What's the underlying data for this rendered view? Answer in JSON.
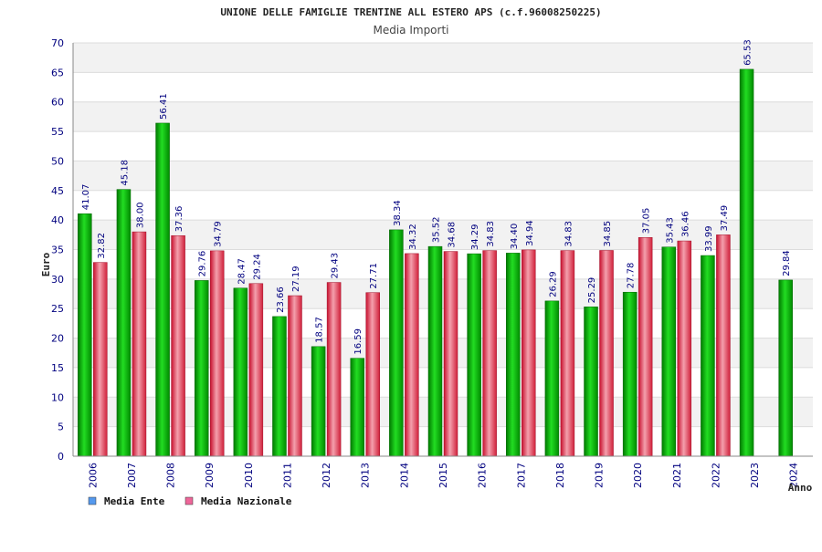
{
  "chart_data": {
    "type": "bar",
    "title": "UNIONE DELLE FAMIGLIE TRENTINE ALL ESTERO APS (c.f.96008250225)",
    "subtitle": "Media Importi",
    "xlabel": "Anno",
    "ylabel": "Euro",
    "ylim": [
      0,
      70
    ],
    "ytick_step": 5,
    "grid": true,
    "legend_position": "bottom-left",
    "categories": [
      "2006",
      "2007",
      "2008",
      "2009",
      "2010",
      "2011",
      "2012",
      "2013",
      "2014",
      "2015",
      "2016",
      "2017",
      "2018",
      "2019",
      "2020",
      "2021",
      "2022",
      "2023",
      "2024"
    ],
    "series": [
      {
        "name": "Media Ente",
        "legend_color": "#5599ee",
        "bar_color": "#00b000",
        "values": [
          41.07,
          45.18,
          56.41,
          29.76,
          28.47,
          23.66,
          18.57,
          16.59,
          38.34,
          35.52,
          34.29,
          34.4,
          26.29,
          25.29,
          27.78,
          35.43,
          33.99,
          65.53,
          29.84
        ],
        "labels": [
          "41.07",
          "45.18",
          "56.41",
          "29.76",
          "28.47",
          "23.66",
          "18.57",
          "16.59",
          "38.34",
          "35.52",
          "34.29",
          "34.40",
          "26.29",
          "25.29",
          "27.78",
          "35.43",
          "33.99",
          "65.53",
          "29.84"
        ]
      },
      {
        "name": "Media Nazionale",
        "legend_color": "#ee6699",
        "bar_color": "#e02040",
        "values": [
          32.82,
          38.0,
          37.36,
          34.79,
          29.24,
          27.19,
          29.43,
          27.71,
          34.32,
          34.68,
          34.83,
          34.94,
          34.83,
          34.85,
          37.05,
          36.46,
          37.49,
          null,
          null
        ],
        "labels": [
          "32.82",
          "38.00",
          "37.36",
          "34.79",
          "29.24",
          "27.19",
          "29.43",
          "27.71",
          "34.32",
          "34.68",
          "34.83",
          "34.94",
          "34.83",
          "34.85",
          "37.05",
          "36.46",
          "37.49",
          null,
          null
        ]
      }
    ]
  }
}
